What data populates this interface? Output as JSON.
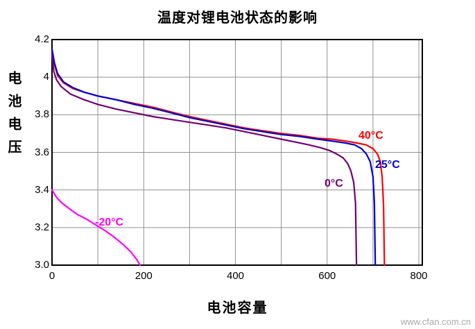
{
  "title": "温度对锂电池状态的影响",
  "y_axis_title": "电池电压",
  "x_axis_title": "电池容量",
  "watermark": "www.cfan.com.cn",
  "colors": {
    "grid": "#909090",
    "border": "#000000",
    "background": "#ffffff",
    "watermark": "#aaaaaa"
  },
  "chart_data": {
    "type": "line",
    "title": "温度对锂电池状态的影响",
    "xlabel": "电池容量",
    "ylabel": "电池电压",
    "xlim": [
      0,
      808
    ],
    "ylim": [
      3.0,
      4.2
    ],
    "x_ticks": [
      0,
      200,
      400,
      600,
      800
    ],
    "x_tick_labels": [
      "0",
      "200",
      "400",
      "600",
      "800"
    ],
    "x_grid_step": 100,
    "y_ticks": [
      4.2,
      4.0,
      3.8,
      3.6,
      3.4,
      3.2,
      3.0
    ],
    "y_tick_labels": [
      "4.2",
      "4",
      "3.8",
      "3.6",
      "3.4",
      "3.2",
      "3.0"
    ],
    "grid": true,
    "legend": "inline-labels",
    "series": [
      {
        "name": "40°C",
        "color": "#ff0000",
        "points": [
          [
            0,
            4.14
          ],
          [
            5,
            4.07
          ],
          [
            12,
            4.01
          ],
          [
            25,
            3.97
          ],
          [
            45,
            3.94
          ],
          [
            70,
            3.92
          ],
          [
            100,
            3.9
          ],
          [
            140,
            3.88
          ],
          [
            180,
            3.86
          ],
          [
            220,
            3.84
          ],
          [
            260,
            3.815
          ],
          [
            300,
            3.79
          ],
          [
            340,
            3.77
          ],
          [
            380,
            3.75
          ],
          [
            420,
            3.73
          ],
          [
            460,
            3.715
          ],
          [
            500,
            3.7
          ],
          [
            540,
            3.69
          ],
          [
            580,
            3.675
          ],
          [
            610,
            3.67
          ],
          [
            640,
            3.66
          ],
          [
            665,
            3.65
          ],
          [
            685,
            3.64
          ],
          [
            700,
            3.62
          ],
          [
            710,
            3.59
          ],
          [
            716,
            3.55
          ],
          [
            720,
            3.47
          ],
          [
            723,
            3.32
          ],
          [
            725,
            3.0
          ]
        ]
      },
      {
        "name": "25°C",
        "color": "#0000cc",
        "points": [
          [
            0,
            4.15
          ],
          [
            5,
            4.08
          ],
          [
            12,
            4.02
          ],
          [
            25,
            3.975
          ],
          [
            45,
            3.945
          ],
          [
            70,
            3.92
          ],
          [
            100,
            3.9
          ],
          [
            140,
            3.88
          ],
          [
            180,
            3.855
          ],
          [
            220,
            3.835
          ],
          [
            260,
            3.81
          ],
          [
            300,
            3.785
          ],
          [
            340,
            3.765
          ],
          [
            380,
            3.745
          ],
          [
            420,
            3.725
          ],
          [
            460,
            3.71
          ],
          [
            500,
            3.695
          ],
          [
            540,
            3.685
          ],
          [
            580,
            3.67
          ],
          [
            610,
            3.66
          ],
          [
            640,
            3.65
          ],
          [
            660,
            3.64
          ],
          [
            675,
            3.62
          ],
          [
            686,
            3.59
          ],
          [
            694,
            3.55
          ],
          [
            700,
            3.47
          ],
          [
            703,
            3.33
          ],
          [
            705,
            3.0
          ]
        ]
      },
      {
        "name": "0°C",
        "color": "#730073",
        "points": [
          [
            0,
            4.12
          ],
          [
            4,
            4.03
          ],
          [
            10,
            3.985
          ],
          [
            20,
            3.95
          ],
          [
            40,
            3.91
          ],
          [
            70,
            3.88
          ],
          [
            100,
            3.855
          ],
          [
            140,
            3.83
          ],
          [
            180,
            3.81
          ],
          [
            220,
            3.79
          ],
          [
            260,
            3.775
          ],
          [
            300,
            3.76
          ],
          [
            340,
            3.745
          ],
          [
            380,
            3.73
          ],
          [
            420,
            3.71
          ],
          [
            460,
            3.69
          ],
          [
            500,
            3.67
          ],
          [
            530,
            3.655
          ],
          [
            560,
            3.64
          ],
          [
            585,
            3.625
          ],
          [
            605,
            3.61
          ],
          [
            622,
            3.59
          ],
          [
            635,
            3.57
          ],
          [
            645,
            3.54
          ],
          [
            652,
            3.5
          ],
          [
            658,
            3.44
          ],
          [
            662,
            3.33
          ],
          [
            664,
            3.0
          ]
        ]
      },
      {
        "name": "-20°C",
        "color": "#ff00ff",
        "points": [
          [
            0,
            3.4
          ],
          [
            10,
            3.36
          ],
          [
            22,
            3.33
          ],
          [
            38,
            3.3
          ],
          [
            55,
            3.27
          ],
          [
            75,
            3.245
          ],
          [
            95,
            3.215
          ],
          [
            115,
            3.185
          ],
          [
            135,
            3.15
          ],
          [
            155,
            3.11
          ],
          [
            172,
            3.07
          ],
          [
            185,
            3.03
          ],
          [
            192,
            3.0
          ]
        ]
      }
    ]
  }
}
